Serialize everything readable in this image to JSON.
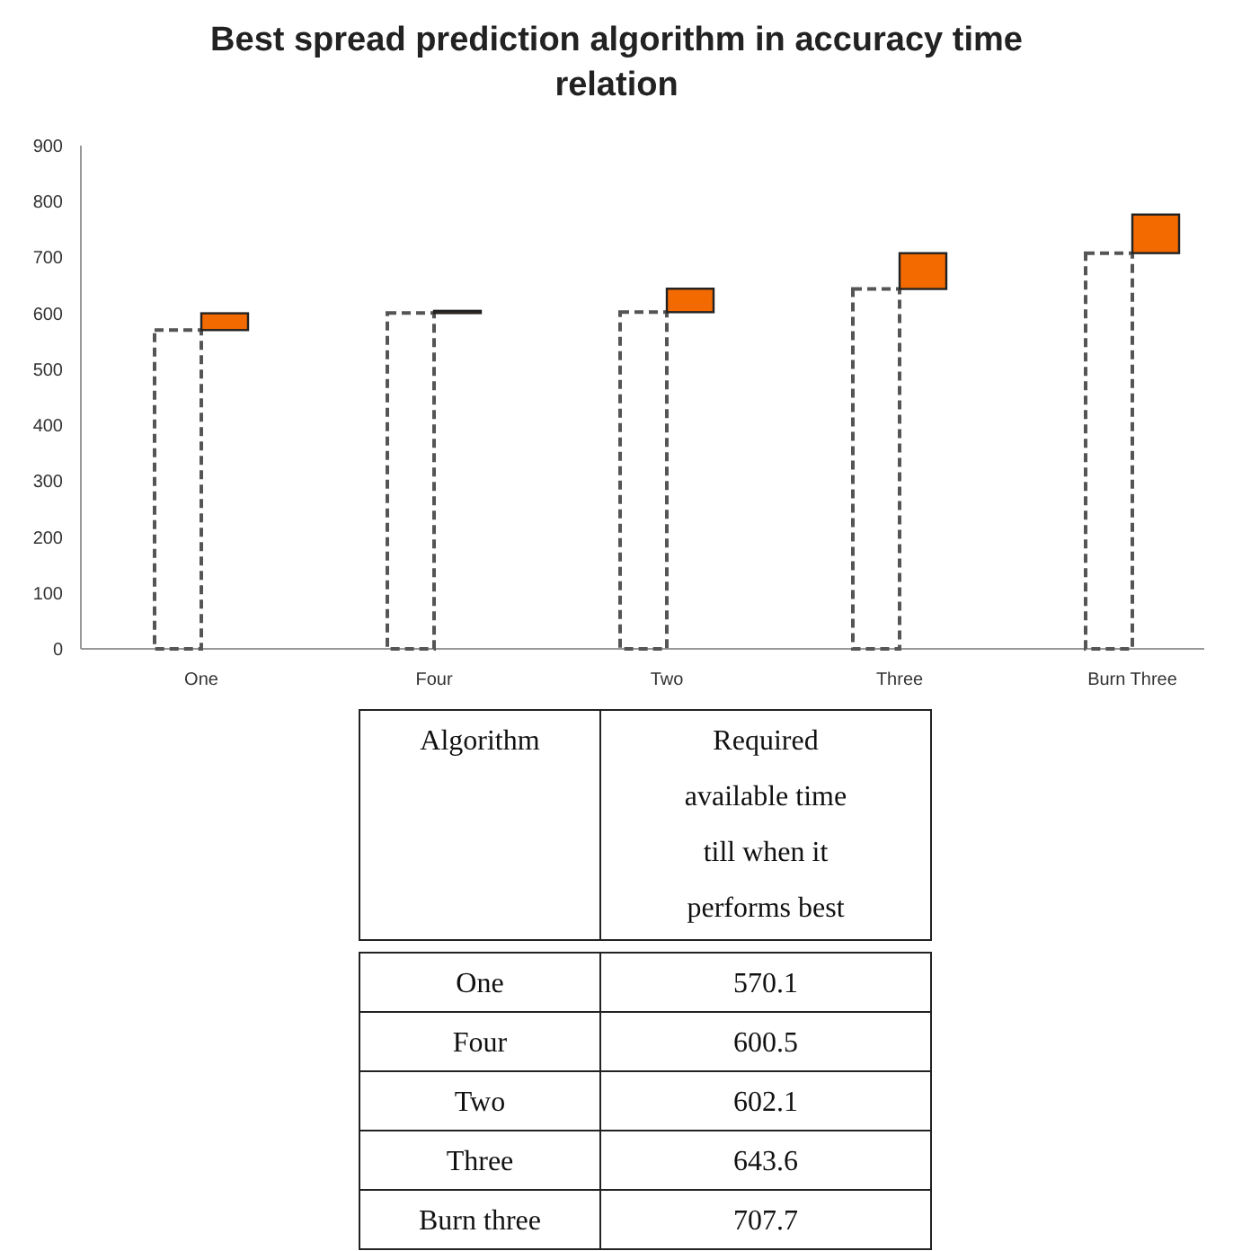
{
  "chart_data": {
    "type": "bar",
    "title": "Best spread prediction algorithm in accuracy time relation",
    "categories": [
      "One",
      "Four",
      "Two",
      "Three",
      "Burn Three"
    ],
    "stacked": true,
    "series": [
      {
        "color": "#555555",
        "line_style": "dashed",
        "values": [
          570.1,
          600.5,
          602.1,
          643.6,
          707.7
        ]
      },
      {
        "color": "#f26a00",
        "values": [
          30,
          4,
          42,
          64,
          69
        ]
      }
    ],
    "ylim": [
      0,
      900
    ],
    "yticks": [
      0,
      100,
      200,
      300,
      400,
      500,
      600,
      700,
      800,
      900
    ],
    "grid": false,
    "annotations": [
      "Algorithm",
      "Required available time till when it performs best",
      "One",
      "570.1",
      "Four",
      "600.5",
      "Two",
      "602.1",
      "Three",
      "643.6",
      "Burn three",
      "707.7"
    ]
  }
}
